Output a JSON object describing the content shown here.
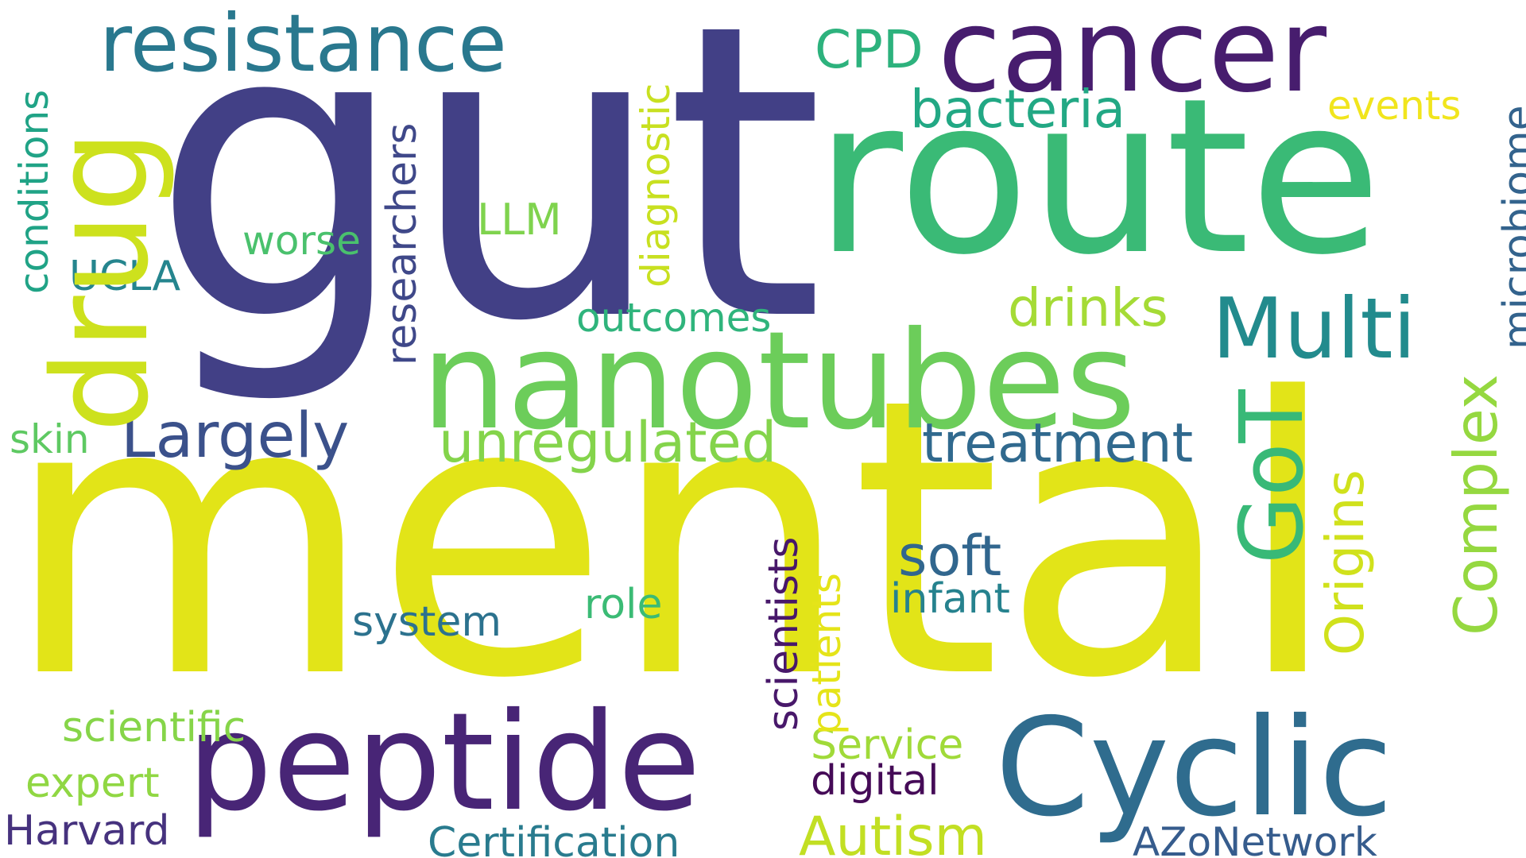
{
  "words": {
    "mental": {
      "text": "mental",
      "color": "#e2e418"
    },
    "gut": {
      "text": "gut",
      "color": "#424086"
    },
    "route": {
      "text": "route",
      "color": "#3aba76"
    },
    "nanotubes": {
      "text": "nanotubes",
      "color": "#6ccd5a"
    },
    "peptide": {
      "text": "peptide",
      "color": "#482576"
    },
    "cyclic": {
      "text": "Cyclic",
      "color": "#2f6c8e"
    },
    "cancer": {
      "text": "cancer",
      "color": "#471d6e"
    },
    "drug": {
      "text": "drug",
      "color": "#cde11d"
    },
    "resistance": {
      "text": "resistance",
      "color": "#29788e"
    },
    "multi": {
      "text": "Multi",
      "color": "#228b8d"
    },
    "largely": {
      "text": "Largely",
      "color": "#3b518b"
    },
    "unregulated": {
      "text": "unregulated",
      "color": "#84d44b"
    },
    "treatment": {
      "text": "treatment",
      "color": "#30698e"
    },
    "got": {
      "text": "GoT",
      "color": "#38b977"
    },
    "bacteria": {
      "text": "bacteria",
      "color": "#22a884"
    },
    "drinks": {
      "text": "drinks",
      "color": "#a5db36"
    },
    "complex": {
      "text": "Complex",
      "color": "#95d840"
    },
    "origins": {
      "text": "Origins",
      "color": "#d0e11c"
    },
    "soft": {
      "text": "soft",
      "color": "#31668e"
    },
    "autism": {
      "text": "Autism",
      "color": "#c2df23"
    },
    "cpd": {
      "text": "CPD",
      "color": "#2db27d"
    },
    "events": {
      "text": "events",
      "color": "#f1e51d"
    },
    "microbiome": {
      "text": "microbiome",
      "color": "#33638d"
    },
    "diagnostic": {
      "text": "diagnostic",
      "color": "#c8e020"
    },
    "llm": {
      "text": "LLM",
      "color": "#7fd34e"
    },
    "researchers": {
      "text": "researchers",
      "color": "#3f4889"
    },
    "worse": {
      "text": "worse",
      "color": "#4ac16d"
    },
    "ucla": {
      "text": "UCLA",
      "color": "#25858e"
    },
    "conditions": {
      "text": "conditions",
      "color": "#20a386"
    },
    "outcomes": {
      "text": "outcomes",
      "color": "#2fb47c"
    },
    "skin": {
      "text": "skin",
      "color": "#5ec962"
    },
    "scientists": {
      "text": "scientists",
      "color": "#48186a"
    },
    "patients": {
      "text": "patients",
      "color": "#e5e419"
    },
    "service": {
      "text": "Service",
      "color": "#a0da39"
    },
    "digital": {
      "text": "digital",
      "color": "#450b57"
    },
    "infant": {
      "text": "infant",
      "color": "#26828e"
    },
    "role": {
      "text": "role",
      "color": "#3bbb75"
    },
    "system": {
      "text": "system",
      "color": "#2c728e"
    },
    "scientific": {
      "text": "scientific",
      "color": "#86d549"
    },
    "expert": {
      "text": "expert",
      "color": "#90d743"
    },
    "harvard": {
      "text": "Harvard",
      "color": "#46327e"
    },
    "certification": {
      "text": "Certification",
      "color": "#297b8e"
    },
    "azonetwork": {
      "text": "AZoNetwork",
      "color": "#365c8d"
    }
  }
}
